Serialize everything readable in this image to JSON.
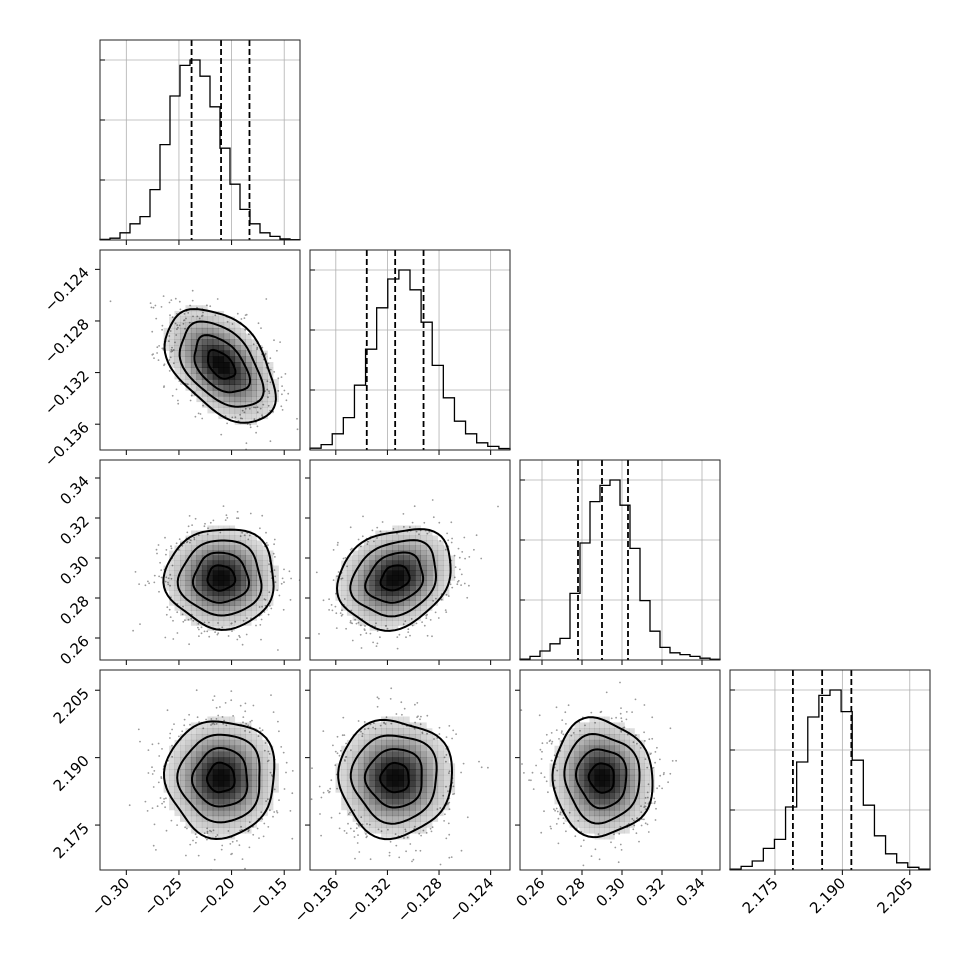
{
  "chart_data": {
    "type": "corner",
    "parameters": [
      {
        "ticks": [
          "−0.30",
          "−0.25",
          "−0.20",
          "−0.15"
        ],
        "tick_values": [
          -0.3,
          -0.25,
          -0.2,
          -0.15
        ],
        "range": [
          -0.325,
          -0.135
        ],
        "quantiles": [
          -0.238,
          -0.21,
          -0.183
        ],
        "histogram": [
          0.003,
          0.01,
          0.04,
          0.09,
          0.13,
          0.28,
          0.53,
          0.8,
          0.97,
          1.0,
          0.91,
          0.74,
          0.51,
          0.31,
          0.17,
          0.09,
          0.04,
          0.02,
          0.006,
          0.002
        ],
        "center": -0.21,
        "sigma": 0.026
      },
      {
        "ticks": [
          "−0.136",
          "−0.132",
          "−0.128",
          "−0.124"
        ],
        "tick_values": [
          -0.136,
          -0.132,
          -0.128,
          -0.124
        ],
        "range": [
          -0.138,
          -0.1225
        ],
        "quantiles": [
          -0.1336,
          -0.1314,
          -0.1292
        ],
        "histogram": [
          0.01,
          0.03,
          0.09,
          0.18,
          0.36,
          0.56,
          0.79,
          0.95,
          1.0,
          0.89,
          0.71,
          0.47,
          0.29,
          0.16,
          0.09,
          0.04,
          0.02,
          0.008
        ],
        "center": -0.1314,
        "sigma": 0.0022
      },
      {
        "ticks": [
          "0.26",
          "0.28",
          "0.30",
          "0.32",
          "0.34"
        ],
        "tick_values": [
          0.26,
          0.28,
          0.3,
          0.32,
          0.34
        ],
        "range": [
          0.249,
          0.349
        ],
        "quantiles": [
          0.278,
          0.29,
          0.303
        ],
        "histogram": [
          0.005,
          0.02,
          0.05,
          0.09,
          0.12,
          0.37,
          0.65,
          0.88,
          0.97,
          1.0,
          0.86,
          0.62,
          0.33,
          0.16,
          0.07,
          0.04,
          0.03,
          0.02,
          0.01,
          0.004
        ],
        "center": 0.29,
        "sigma": 0.0125
      },
      {
        "ticks": [
          "2.175",
          "2.190",
          "2.205"
        ],
        "tick_values": [
          2.175,
          2.19,
          2.205
        ],
        "range": [
          2.165,
          2.2095
        ],
        "quantiles": [
          2.179,
          2.1855,
          2.192
        ],
        "histogram": [
          0.005,
          0.02,
          0.05,
          0.12,
          0.17,
          0.35,
          0.6,
          0.85,
          0.97,
          1.0,
          0.88,
          0.61,
          0.36,
          0.19,
          0.09,
          0.04,
          0.015,
          0.005
        ],
        "center": 2.1855,
        "sigma": 0.0065
      }
    ],
    "correlations": [
      {
        "pair": [
          1,
          0
        ],
        "rho": -0.45
      },
      {
        "pair": [
          2,
          0
        ],
        "rho": 0.0
      },
      {
        "pair": [
          2,
          1
        ],
        "rho": 0.2
      },
      {
        "pair": [
          3,
          0
        ],
        "rho": 0.0
      },
      {
        "pair": [
          3,
          1
        ],
        "rho": 0.0
      },
      {
        "pair": [
          3,
          2
        ],
        "rho": -0.05
      }
    ],
    "contour_levels_sigma": [
      0.5,
      1.0,
      1.5,
      2.0
    ],
    "histogram_y_ticks": 3,
    "grid": true,
    "colors": {
      "line": "#000000",
      "scatter": "#9a9a9a",
      "density": "#000000",
      "grid": "#b0b0b0"
    }
  }
}
